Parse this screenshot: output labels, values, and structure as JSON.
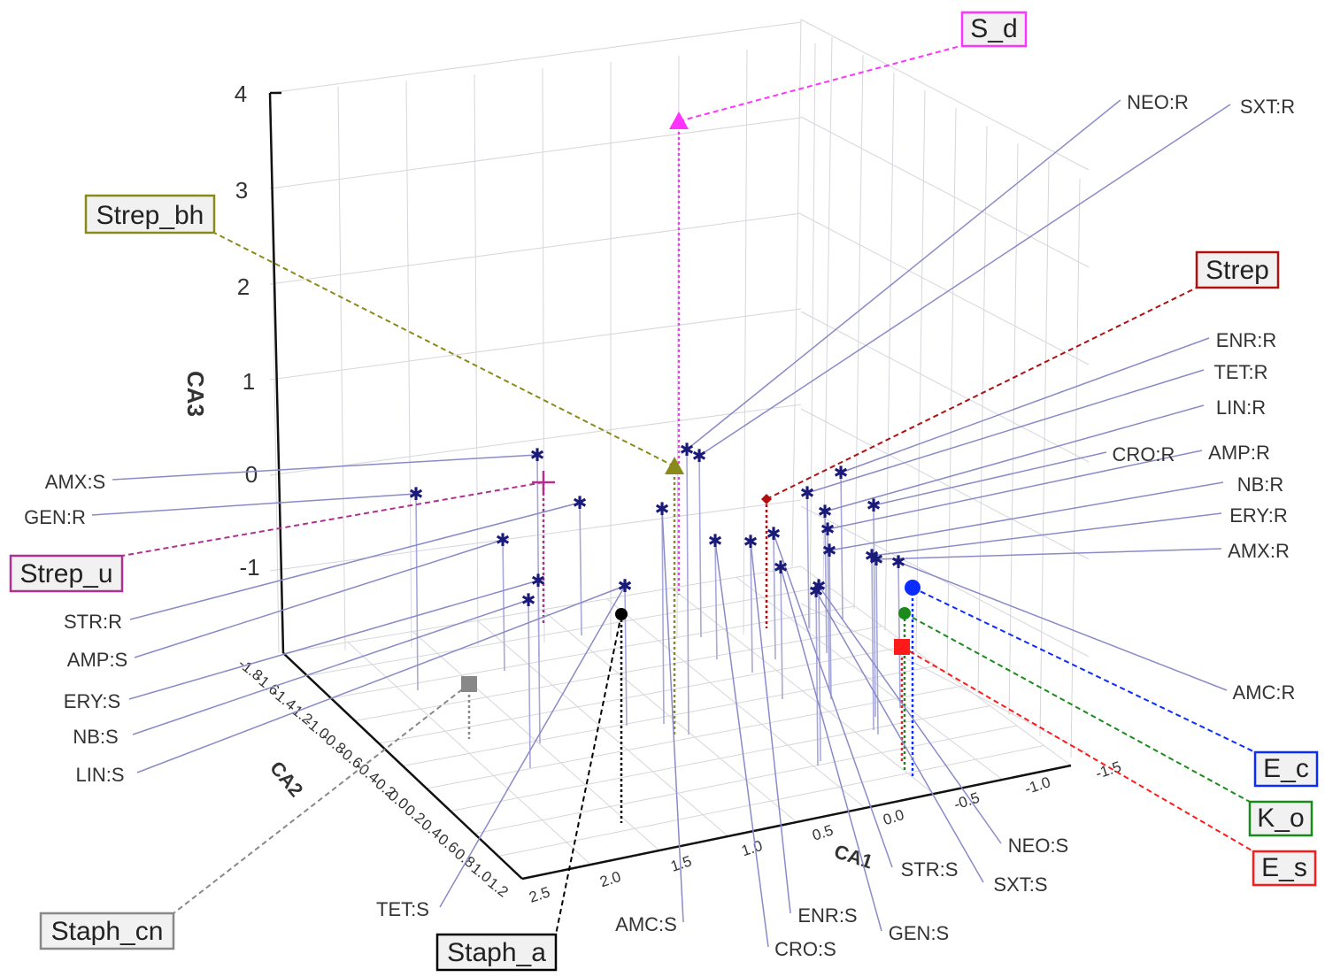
{
  "chart_data": {
    "type": "scatter",
    "subtype": "3d-correspondence-analysis",
    "axes": {
      "x": {
        "label": "CA1",
        "ticks": [
          "2.5",
          "2.0",
          "1.5",
          "1.0",
          "0.5",
          "0.0",
          "-0.5",
          "-1.0",
          "-1.5"
        ]
      },
      "y": {
        "label": "CA2",
        "ticks": [
          "-1.8",
          "-1.6",
          "-1.4",
          "-1.2",
          "-1.0",
          "-0.8",
          "-0.6",
          "-0.4",
          "-0.2",
          "0.0",
          "0.2",
          "0.4",
          "0.6",
          "0.8",
          "1.0",
          "1.2"
        ]
      },
      "z": {
        "label": "CA3",
        "ticks": [
          "4",
          "3",
          "2",
          "1",
          "0",
          "-1"
        ]
      }
    },
    "grid": true,
    "variables": [
      {
        "label": "AMX:S"
      },
      {
        "label": "GEN:R"
      },
      {
        "label": "STR:R"
      },
      {
        "label": "AMP:S"
      },
      {
        "label": "ERY:S"
      },
      {
        "label": "NB:S"
      },
      {
        "label": "LIN:S"
      },
      {
        "label": "TET:S"
      },
      {
        "label": "AMC:S"
      },
      {
        "label": "CRO:S"
      },
      {
        "label": "ENR:S"
      },
      {
        "label": "GEN:S"
      },
      {
        "label": "STR:S"
      },
      {
        "label": "SXT:S"
      },
      {
        "label": "NEO:S"
      },
      {
        "label": "NEO:R"
      },
      {
        "label": "SXT:R"
      },
      {
        "label": "ENR:R"
      },
      {
        "label": "TET:R"
      },
      {
        "label": "LIN:R"
      },
      {
        "label": "CRO:R"
      },
      {
        "label": "AMP:R"
      },
      {
        "label": "NB:R"
      },
      {
        "label": "ERY:R"
      },
      {
        "label": "AMX:R"
      },
      {
        "label": "AMC:R"
      }
    ],
    "groups": [
      {
        "label": "S_d",
        "color": "#ff33ff",
        "marker": "triangle"
      },
      {
        "label": "Strep_bh",
        "color": "#8a8a1a",
        "marker": "triangle"
      },
      {
        "label": "Strep",
        "color": "#b01010",
        "marker": "diamond"
      },
      {
        "label": "Strep_u",
        "color": "#b0308f",
        "marker": "cross"
      },
      {
        "label": "Staph_cn",
        "color": "#888888",
        "marker": "square"
      },
      {
        "label": "Staph_a",
        "color": "#000000",
        "marker": "circle"
      },
      {
        "label": "E_c",
        "color": "#0a2cff",
        "marker": "circle"
      },
      {
        "label": "K_o",
        "color": "#1a8a1a",
        "marker": "circle"
      },
      {
        "label": "E_s",
        "color": "#ff1a1a",
        "marker": "square"
      }
    ]
  }
}
